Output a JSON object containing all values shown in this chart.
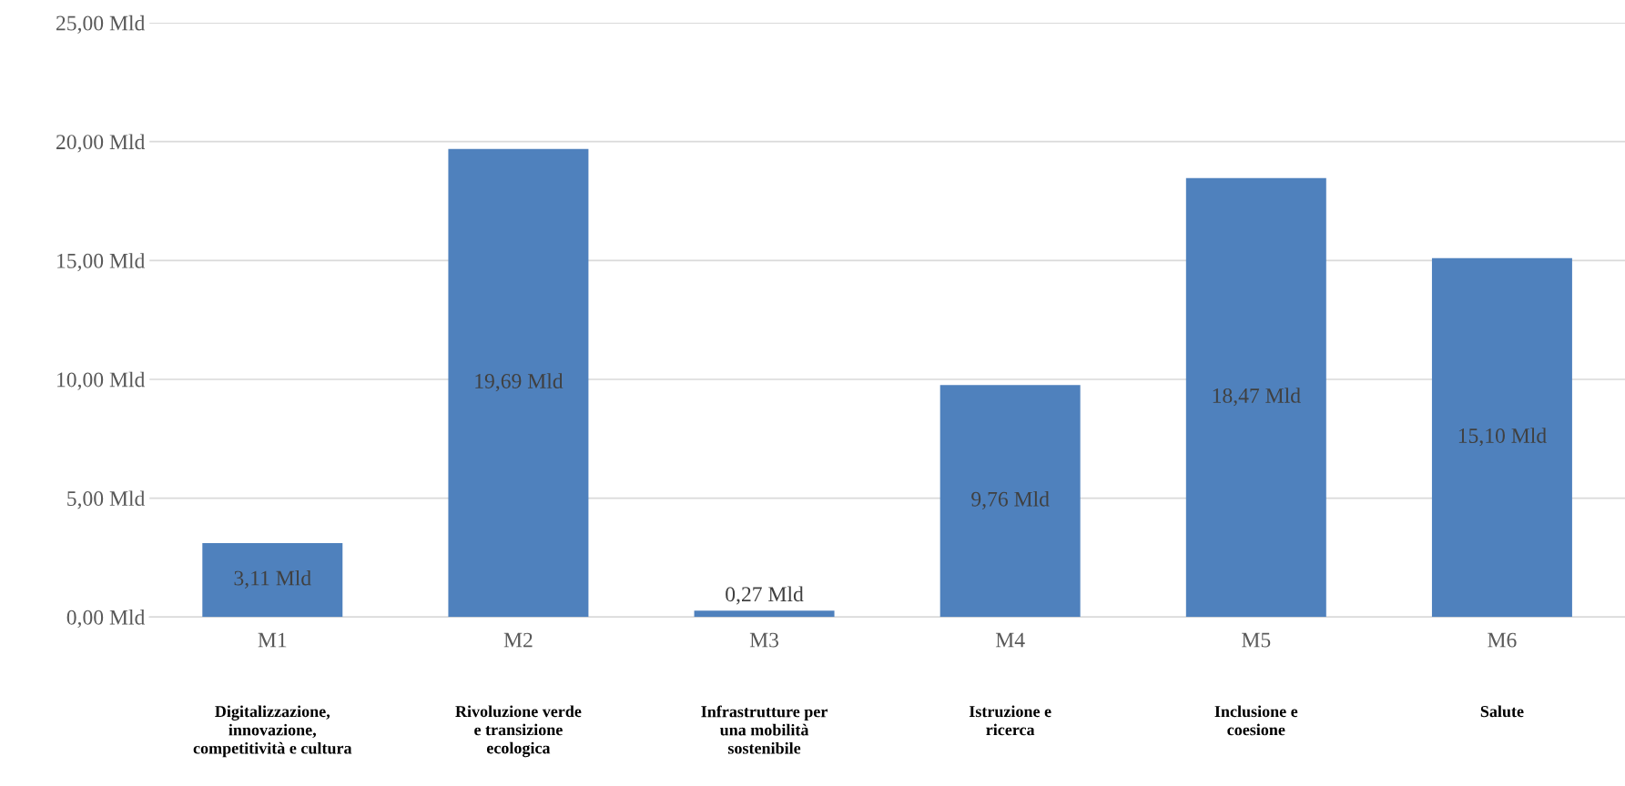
{
  "chart_data": {
    "type": "bar",
    "categories": [
      "M1",
      "M2",
      "M3",
      "M4",
      "M5",
      "M6"
    ],
    "values": [
      3.11,
      19.69,
      0.27,
      9.76,
      18.47,
      15.1
    ],
    "value_labels": [
      "3,11 Mld",
      "19,69 Mld",
      "0,27 Mld",
      "9,76 Mld",
      "18,47 Mld",
      "15,10 Mld"
    ],
    "color": "#4f81bd",
    "ylim": [
      0,
      25
    ],
    "yticks": [
      {
        "value": 0,
        "label": "0,00 Mld"
      },
      {
        "value": 5,
        "label": "5,00 Mld"
      },
      {
        "value": 10,
        "label": "10,00 Mld"
      },
      {
        "value": 15,
        "label": "15,00 Mld"
      },
      {
        "value": 20,
        "label": "20,00 Mld"
      },
      {
        "value": 25,
        "label": "25,00 Mld"
      }
    ],
    "grid": "y",
    "legend": false,
    "annotations": [
      "Digitalizzazione,\ninnovazione,\ncompetitività e cultura",
      "Rivoluzione verde\ne transizione\necologica",
      "Infrastrutture per\nuna mobilità\nsostenibile",
      "Istruzione e\nricerca",
      "Inclusione e\ncoesione",
      "Salute"
    ]
  }
}
